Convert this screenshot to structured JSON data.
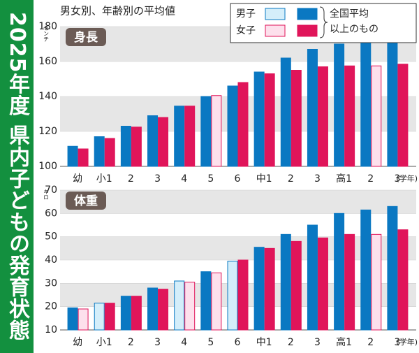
{
  "sidebar_title": "2025年度 県内子どもの発育状態",
  "header": "男女別、年齢別の平均値",
  "legend_note": [
    "全国平均",
    "以上のもの"
  ],
  "chart_data": [
    {
      "type": "bar",
      "title": "身長",
      "unit": "センチ",
      "x_unit": "(学年)",
      "categories": [
        "幼",
        "小1",
        "2",
        "3",
        "4",
        "5",
        "6",
        "中1",
        "2",
        "3",
        "高1",
        "2",
        "3"
      ],
      "series": [
        {
          "name": "男子",
          "color": "#0a78c2",
          "light_color": "#d4eefa",
          "values": [
            111.5,
            117,
            123,
            129,
            134.5,
            140,
            146,
            154,
            162,
            167,
            170,
            171,
            171.5
          ],
          "colors": [
            "#0a78c2",
            "#0a78c2",
            "#0a78c2",
            "#0a78c2",
            "#0a78c2",
            "#0a78c2",
            "#0a78c2",
            "#0a78c2",
            "#0a78c2",
            "#0a78c2",
            "#0a78c2",
            "#0a78c2",
            "#0a78c2"
          ]
        },
        {
          "name": "女子",
          "color": "#e0155a",
          "light_color": "#fde0ec",
          "values": [
            110,
            116,
            122.5,
            128,
            134.5,
            140.5,
            148,
            153,
            155,
            157,
            157.5,
            157.5,
            158.5
          ],
          "colors": [
            "#e0155a",
            "#e0155a",
            "#e0155a",
            "#e0155a",
            "#e0155a",
            "#fde0ec",
            "#e0155a",
            "#e0155a",
            "#e0155a",
            "#e0155a",
            "#e0155a",
            "#fde0ec",
            "#e0155a"
          ]
        }
      ],
      "ylim": [
        100,
        180
      ],
      "yticks": [
        100,
        120,
        140,
        160,
        180
      ],
      "grid": "bands"
    },
    {
      "type": "bar",
      "title": "体重",
      "unit": "キロ",
      "x_unit": "(学年)",
      "categories": [
        "幼",
        "小1",
        "2",
        "3",
        "4",
        "5",
        "6",
        "中1",
        "2",
        "3",
        "高1",
        "2",
        "3"
      ],
      "series": [
        {
          "name": "男子",
          "color": "#0a78c2",
          "light_color": "#d4eefa",
          "values": [
            19.5,
            21.5,
            24.5,
            28,
            31,
            35,
            39.5,
            45.5,
            51,
            55,
            60,
            61.5,
            63
          ],
          "colors": [
            "#0a78c2",
            "#d4eefa",
            "#0a78c2",
            "#0a78c2",
            "#d4eefa",
            "#0a78c2",
            "#d4eefa",
            "#0a78c2",
            "#0a78c2",
            "#0a78c2",
            "#0a78c2",
            "#0a78c2",
            "#0a78c2"
          ]
        },
        {
          "name": "女子",
          "color": "#e0155a",
          "light_color": "#fde0ec",
          "values": [
            19,
            21.5,
            24.5,
            27.5,
            30.5,
            34.5,
            40,
            45,
            48,
            49.5,
            51,
            51,
            53
          ],
          "colors": [
            "#fde0ec",
            "#e0155a",
            "#e0155a",
            "#e0155a",
            "#fde0ec",
            "#fde0ec",
            "#e0155a",
            "#e0155a",
            "#e0155a",
            "#e0155a",
            "#e0155a",
            "#fde0ec",
            "#e0155a"
          ]
        }
      ],
      "ylim": [
        10,
        70
      ],
      "yticks": [
        10,
        20,
        30,
        40,
        50,
        60,
        70
      ],
      "grid": "bands"
    }
  ]
}
